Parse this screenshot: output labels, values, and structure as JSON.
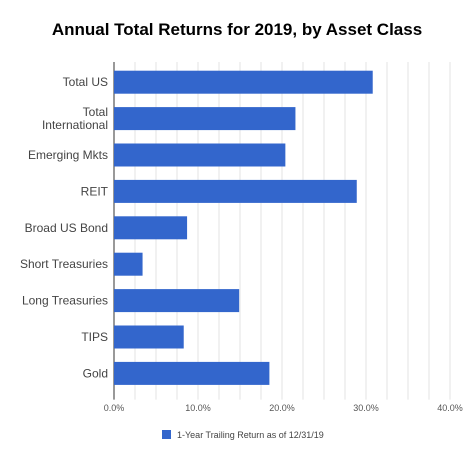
{
  "chart_data": {
    "type": "bar",
    "orientation": "horizontal",
    "title": "Annual Total Returns for 2019, by Asset Class",
    "categories": [
      [
        "Total US"
      ],
      [
        "Total",
        "International"
      ],
      [
        "Emerging Mkts"
      ],
      [
        "REIT"
      ],
      [
        "Broad US Bond"
      ],
      [
        "Short Treasuries"
      ],
      [
        "Long Treasuries"
      ],
      [
        "TIPS"
      ],
      [
        "Gold"
      ]
    ],
    "series": [
      {
        "name": "1-Year Trailing Return as of 12/31/19",
        "values": [
          30.8,
          21.6,
          20.4,
          28.9,
          8.7,
          3.4,
          14.9,
          8.3,
          18.5
        ]
      }
    ],
    "xlim": [
      0,
      40
    ],
    "x_ticks": [
      "0.0%",
      "10.0%",
      "20.0%",
      "30.0%",
      "40.0%"
    ],
    "grid": "vertical",
    "legend_position": "bottom",
    "bar_color": "#3366cc"
  }
}
